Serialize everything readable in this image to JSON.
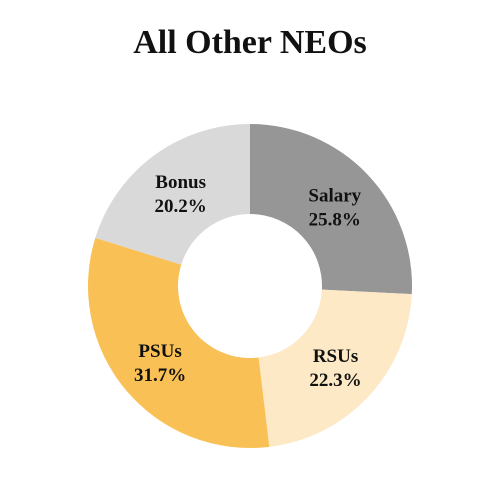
{
  "chart_data": {
    "type": "pie",
    "title": "All Other NEOs",
    "donut": true,
    "slices": [
      {
        "label": "Salary",
        "value": 25.8,
        "display": "25.8%",
        "color": "#969696"
      },
      {
        "label": "RSUs",
        "value": 22.3,
        "display": "22.3%",
        "color": "#fde9c5"
      },
      {
        "label": "PSUs",
        "value": 31.7,
        "display": "31.7%",
        "color": "#f9c155"
      },
      {
        "label": "Bonus",
        "value": 20.2,
        "display": "20.2%",
        "color": "#d9d9d9"
      }
    ],
    "start": "top",
    "direction": "clockwise",
    "legend": "none"
  }
}
